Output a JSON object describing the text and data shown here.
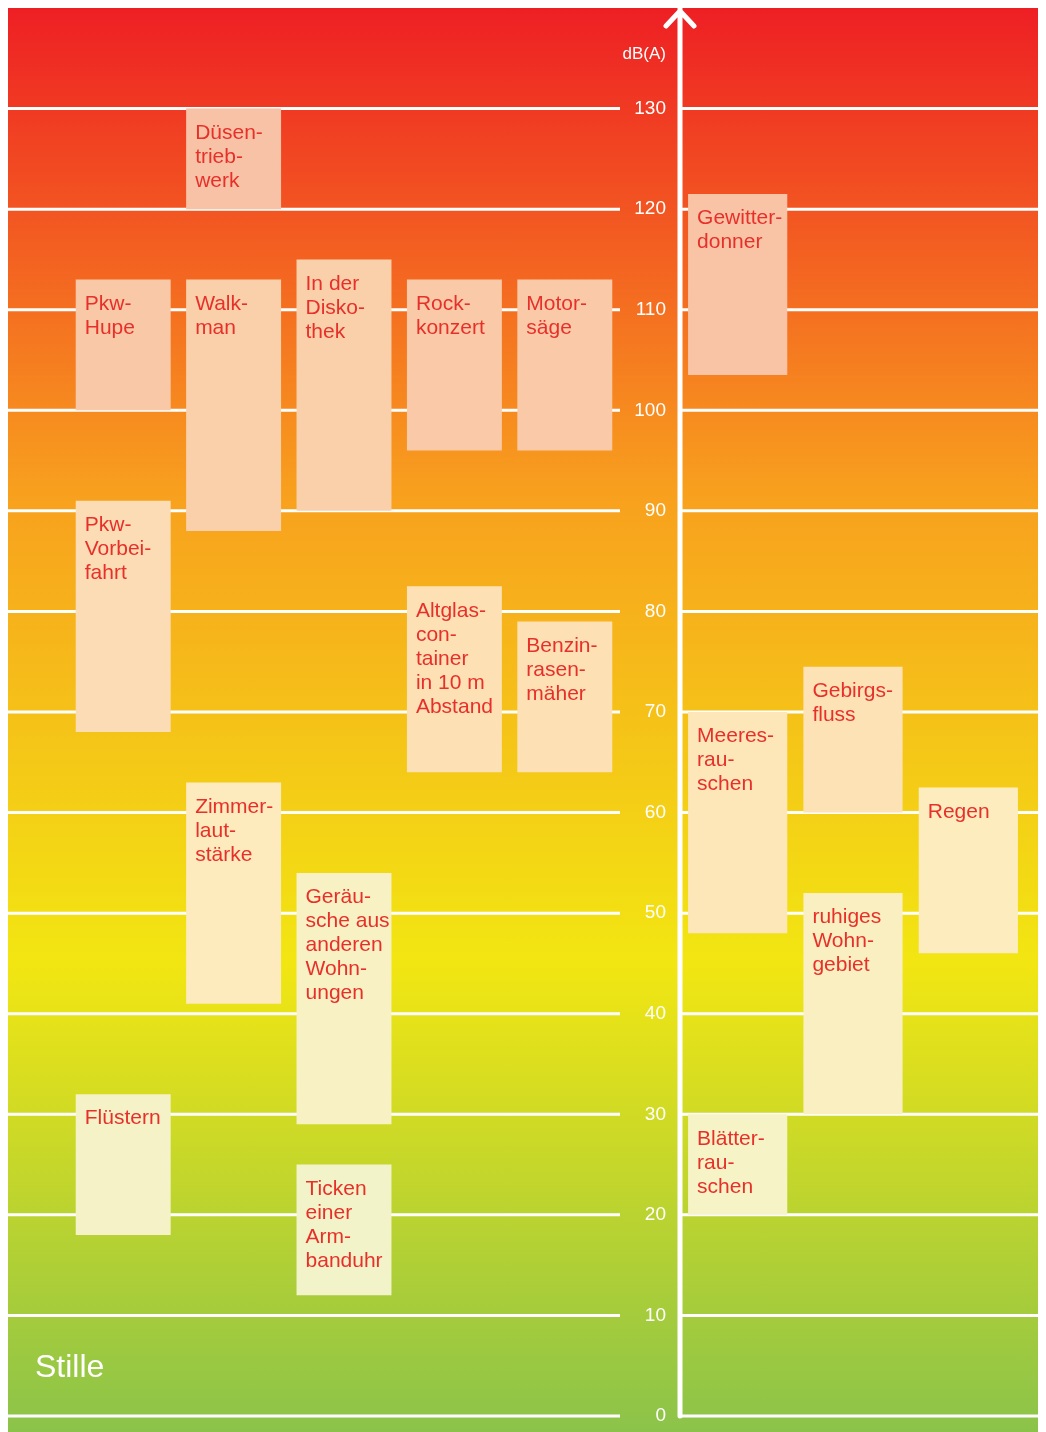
{
  "chart_data": [
    {
      "type": "bar",
      "categories": [
        null,
        null,
        null,
        null,
        null
      ],
      "ylim": [
        0,
        140
      ],
      "yticks": [
        0,
        10,
        20,
        30,
        40,
        50,
        60,
        70,
        80,
        90,
        100,
        110,
        120,
        130
      ],
      "grid": "y",
      "legend": false,
      "tick_labels": false,
      "annotations": [
        "Stille"
      ],
      "series": [
        {
          "colors": [
            "#f9c8a6",
            "#f8c2a6",
            "#fad0aa",
            "#facaa8",
            "#facaa8"
          ],
          "values": [
            13,
            10,
            25,
            17,
            17
          ],
          "base": [
            100,
            120,
            90,
            96,
            96
          ],
          "value_labels": [
            "Pkw-\nHupe",
            "Düsen-\ntrieb-\nwerk",
            "In der\nDisko-\nthek",
            "Rock-\nkonzert",
            "Motor-\nsäge"
          ]
        },
        {
          "colors": [
            "#fcdcb4",
            "#fad0aa",
            "#f8f1c3",
            "#fde0b4",
            "#fde0b4"
          ],
          "values": [
            23,
            25,
            25,
            18.5,
            15
          ],
          "base": [
            68,
            88,
            29,
            64,
            64
          ],
          "value_labels": [
            "Pkw-\nVorbei-\nfahrt",
            "Walk-\nman",
            "Geräu-\nsche aus\nanderen\nWohn-\nungen",
            "Altglas-\ncon-\ntainer\nin 10 m\nAbstand",
            "Benzin-\nrasen-\nmäher"
          ]
        },
        {
          "colors": [
            "#f4f2c6",
            "#fdeabd",
            "#f2f3c8",
            null,
            null
          ],
          "values": [
            14,
            22,
            13,
            null,
            null
          ],
          "base": [
            18,
            41,
            12,
            null,
            null
          ],
          "value_labels": [
            "Flüstern",
            "Zimmer-\nlaut-\nstärke",
            "Ticken\neiner\nArm-\nbanduhr",
            null,
            null
          ]
        }
      ]
    },
    {
      "type": "bar",
      "ylabel": "dB(A)",
      "categories": [
        null,
        null,
        null
      ],
      "ylim": [
        0,
        140
      ],
      "yticks": [
        0,
        10,
        20,
        30,
        40,
        50,
        60,
        70,
        80,
        90,
        100,
        110,
        120,
        130
      ],
      "grid": "y",
      "legend": false,
      "tick_labels": "y",
      "series": [
        {
          "colors": [
            "#f9c4a6",
            "#fde2b6",
            "#fdecbe"
          ],
          "values": [
            18,
            14.5,
            16.5
          ],
          "base": [
            103.5,
            60,
            46
          ],
          "value_labels": [
            "Gewitter-\ndonner",
            "Gebirgs-\nfluss",
            "Regen"
          ]
        },
        {
          "colors": [
            "#fde6b8",
            "#faefc0",
            null
          ],
          "values": [
            22,
            22,
            null
          ],
          "base": [
            48,
            30,
            null
          ],
          "value_labels": [
            "Meeres-\nrau-\nschen",
            "ruhiges\nWohn-\ngebiet",
            null
          ]
        },
        {
          "colors": [
            "#f6f3c6",
            null,
            null
          ],
          "values": [
            10,
            null,
            null
          ],
          "base": [
            20,
            null,
            null
          ],
          "value_labels": [
            "Blätter-\nrau-\nschen",
            null,
            null
          ]
        }
      ]
    }
  ]
}
